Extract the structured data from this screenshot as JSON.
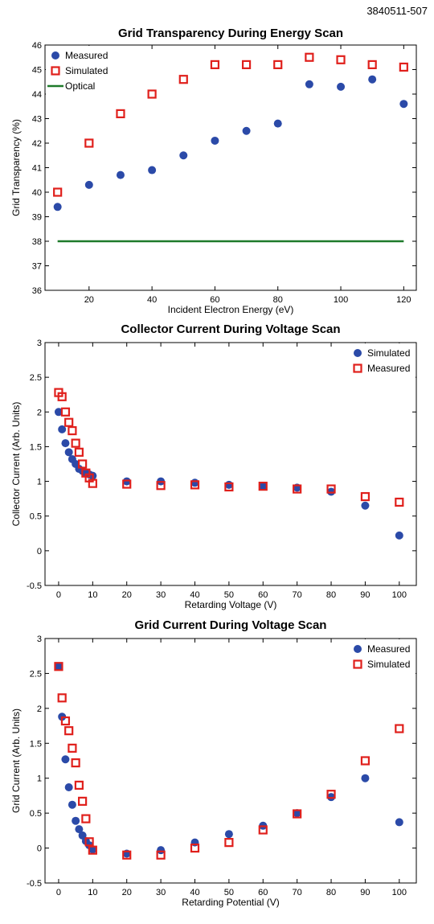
{
  "figure_id": "3840511-507",
  "colors": {
    "measured": "#2b4aa8",
    "simulated": "#e0201c",
    "optical": "#1e7a2a"
  },
  "chart_data": [
    {
      "type": "scatter",
      "title": "Grid Transparency During Energy Scan",
      "xlabel": "Incident Electron Energy (eV)",
      "ylabel": "Grid Transparency (%)",
      "xlim": [
        6,
        124
      ],
      "ylim": [
        36,
        46
      ],
      "xticks": [
        20,
        40,
        60,
        80,
        100,
        120
      ],
      "yticks": [
        36,
        37,
        38,
        39,
        40,
        41,
        42,
        43,
        44,
        45,
        46
      ],
      "legend_position": "top-left",
      "grid": false,
      "series": [
        {
          "name": "Measured",
          "kind": "dot",
          "color": "#2b4aa8",
          "x": [
            10,
            20,
            30,
            40,
            50,
            60,
            70,
            80,
            90,
            100,
            110,
            120
          ],
          "y": [
            39.4,
            40.3,
            40.7,
            40.9,
            41.5,
            42.1,
            42.5,
            42.8,
            44.4,
            44.3,
            44.6,
            43.6
          ]
        },
        {
          "name": "Simulated",
          "kind": "square",
          "color": "#e0201c",
          "x": [
            10,
            20,
            30,
            40,
            50,
            60,
            70,
            80,
            90,
            100,
            110,
            120
          ],
          "y": [
            40.0,
            42.0,
            43.2,
            44.0,
            44.6,
            45.2,
            45.2,
            45.2,
            45.5,
            45.4,
            45.2,
            45.1
          ]
        },
        {
          "name": "Optical",
          "kind": "line",
          "color": "#1e7a2a",
          "x": [
            10,
            120
          ],
          "y": [
            38,
            38
          ]
        }
      ]
    },
    {
      "type": "scatter",
      "title": "Collector Current During Voltage Scan",
      "xlabel": "Retarding Voltage (V)",
      "ylabel": "Collector Current (Arb. Units)",
      "xlim": [
        -4,
        105
      ],
      "ylim": [
        -0.5,
        3
      ],
      "xticks": [
        0,
        10,
        20,
        30,
        40,
        50,
        60,
        70,
        80,
        90,
        100
      ],
      "yticks": [
        -0.5,
        0,
        0.5,
        1,
        1.5,
        2,
        2.5,
        3
      ],
      "legend_position": "top-right",
      "grid": false,
      "series": [
        {
          "name": "Simulated",
          "kind": "dot",
          "color": "#2b4aa8",
          "x": [
            0,
            1,
            2,
            3,
            4,
            5,
            6,
            7,
            8,
            9,
            10,
            20,
            30,
            40,
            50,
            60,
            70,
            80,
            90,
            100
          ],
          "y": [
            2.0,
            1.75,
            1.55,
            1.42,
            1.32,
            1.25,
            1.18,
            1.15,
            1.12,
            1.1,
            1.08,
            1.0,
            1.0,
            0.98,
            0.95,
            0.93,
            0.91,
            0.85,
            0.65,
            0.22
          ]
        },
        {
          "name": "Measured",
          "kind": "square",
          "color": "#e0201c",
          "x": [
            0,
            1,
            2,
            3,
            4,
            5,
            6,
            7,
            8,
            9,
            10,
            20,
            30,
            40,
            50,
            60,
            70,
            80,
            90,
            100
          ],
          "y": [
            2.28,
            2.22,
            2.0,
            1.85,
            1.73,
            1.55,
            1.42,
            1.25,
            1.12,
            1.05,
            0.97,
            0.96,
            0.94,
            0.95,
            0.92,
            0.93,
            0.89,
            0.89,
            0.78,
            0.7
          ]
        }
      ]
    },
    {
      "type": "scatter",
      "title": "Grid Current During Voltage Scan",
      "xlabel": "Retarding Potential (V)",
      "ylabel": "Grid Current (Arb. Units)",
      "xlim": [
        -4,
        105
      ],
      "ylim": [
        -0.5,
        3
      ],
      "xticks": [
        0,
        10,
        20,
        30,
        40,
        50,
        60,
        70,
        80,
        90,
        100
      ],
      "yticks": [
        -0.5,
        0,
        0.5,
        1,
        1.5,
        2,
        2.5,
        3
      ],
      "legend_position": "top-right",
      "grid": false,
      "series": [
        {
          "name": "Measured",
          "kind": "dot",
          "color": "#2b4aa8",
          "x": [
            0,
            1,
            2,
            3,
            4,
            5,
            6,
            7,
            8,
            9,
            10,
            20,
            30,
            40,
            50,
            60,
            70,
            80,
            90,
            100
          ],
          "y": [
            2.6,
            1.88,
            1.27,
            0.87,
            0.62,
            0.39,
            0.27,
            0.18,
            0.1,
            0.04,
            -0.02,
            -0.08,
            -0.03,
            0.08,
            0.2,
            0.32,
            0.5,
            0.73,
            1.0,
            0.37
          ]
        },
        {
          "name": "Simulated",
          "kind": "square",
          "color": "#e0201c",
          "x": [
            0,
            1,
            2,
            3,
            4,
            5,
            6,
            7,
            8,
            9,
            10,
            20,
            30,
            40,
            50,
            60,
            70,
            80,
            90,
            100
          ],
          "y": [
            2.6,
            2.15,
            1.82,
            1.68,
            1.43,
            1.22,
            0.9,
            0.67,
            0.42,
            0.09,
            -0.03,
            -0.1,
            -0.1,
            0.0,
            0.08,
            0.26,
            0.49,
            0.77,
            1.25,
            1.71
          ]
        }
      ]
    }
  ]
}
